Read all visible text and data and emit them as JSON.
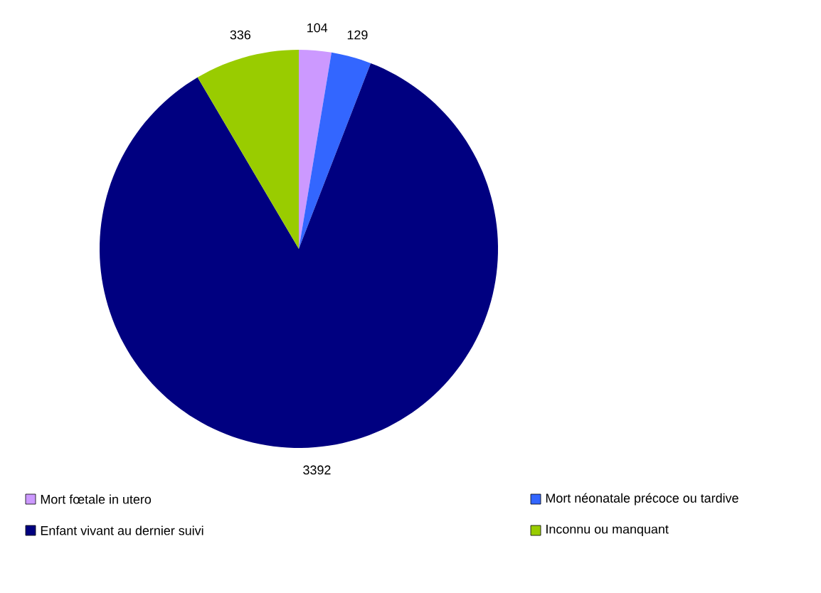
{
  "chart_data": {
    "type": "pie",
    "categories": [
      "Mort fœtale in utero",
      "Mort néonatale précoce ou tardive",
      "Enfant vivant au dernier suivi",
      "Inconnu ou manquant"
    ],
    "values": [
      104,
      129,
      3392,
      336
    ],
    "colors": [
      "#cc99ff",
      "#3366ff",
      "#000080",
      "#99cc00"
    ],
    "data_labels": true,
    "legend": "bottom"
  }
}
